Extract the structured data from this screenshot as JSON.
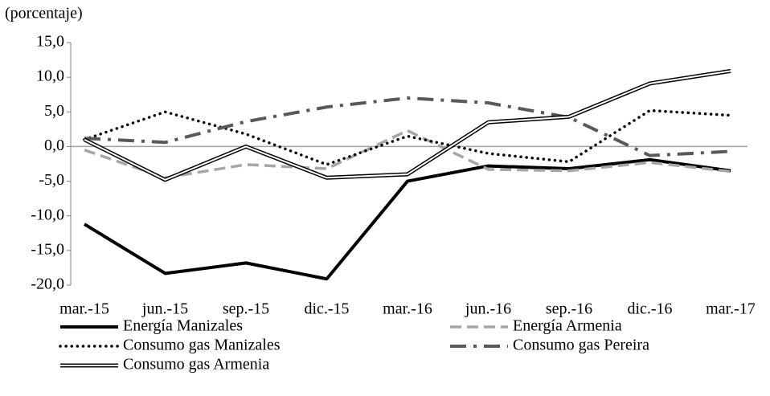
{
  "chart_data": {
    "type": "line",
    "subtitle": "(porcentaje)",
    "categories": [
      "mar.-15",
      "jun.-15",
      "sep.-15",
      "dic.-15",
      "mar.-16",
      "jun.-16",
      "sep.-16",
      "dic.-16",
      "mar.-17"
    ],
    "series": [
      {
        "name": "Energía Manizales",
        "color": "#000000",
        "style": "solid",
        "values": [
          -11.2,
          -18.3,
          -16.8,
          -19.1,
          -5.0,
          -2.8,
          -3.2,
          -1.9,
          -3.5
        ]
      },
      {
        "name": "Energía Armenia",
        "color": "#a6a6a6",
        "style": "dashed",
        "values": [
          -0.5,
          -4.5,
          -2.6,
          -3.2,
          2.3,
          -3.3,
          -3.5,
          -2.3,
          -3.6
        ]
      },
      {
        "name": "Consumo gas Manizales",
        "color": "#000000",
        "style": "dotted",
        "values": [
          1.0,
          5.0,
          1.8,
          -2.6,
          1.5,
          -1.0,
          -2.2,
          5.2,
          4.5
        ]
      },
      {
        "name": "Consumo gas Pereira",
        "color": "#595959",
        "style": "dashdot",
        "values": [
          1.2,
          0.6,
          3.6,
          5.7,
          7.0,
          6.3,
          4.2,
          -1.3,
          -0.7
        ]
      },
      {
        "name": "Consumo gas Armenia",
        "color": "#000000",
        "style": "double",
        "values": [
          1.0,
          -4.8,
          0.0,
          -4.5,
          -4.0,
          3.5,
          4.3,
          9.1,
          10.9
        ]
      }
    ],
    "ylim": [
      -20,
      15
    ],
    "yticks": [
      {
        "value": 15,
        "label": "15,0"
      },
      {
        "value": 10,
        "label": "10,0"
      },
      {
        "value": 5,
        "label": "5,0"
      },
      {
        "value": 0,
        "label": "0,0"
      },
      {
        "value": -5,
        "label": "-5,0"
      },
      {
        "value": -10,
        "label": "-10,0"
      },
      {
        "value": -15,
        "label": "-15,0"
      },
      {
        "value": -20,
        "label": "-20,0"
      }
    ]
  }
}
